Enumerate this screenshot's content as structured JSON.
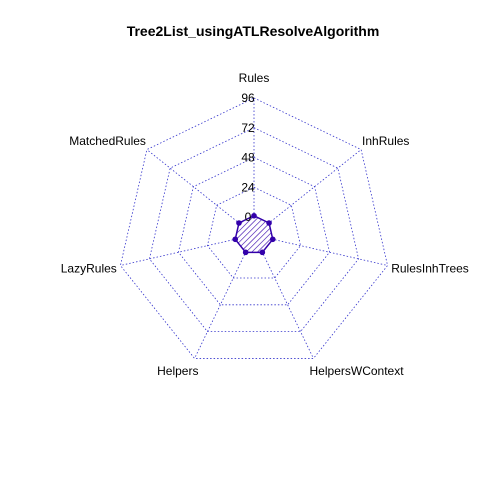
{
  "chart_data": {
    "type": "radar",
    "title": "Tree2List_usingATLResolveAlgorithm",
    "axes": [
      "Rules",
      "InhRules",
      "RulesInhTrees",
      "HelpersWContext",
      "Helpers",
      "LazyRules",
      "MatchedRules"
    ],
    "values": [
      1,
      1,
      1,
      1,
      1,
      1,
      1
    ],
    "rlim": [
      0,
      96
    ],
    "ticks": [
      0,
      24,
      48,
      72,
      96
    ],
    "tick_labels": [
      "0",
      "24",
      "48",
      "72",
      "96"
    ],
    "grid": true,
    "colors": {
      "grid": "#3333cc",
      "series_line": "#3300aa",
      "series_fill": "#3300aa",
      "points": "#3300aa"
    }
  }
}
